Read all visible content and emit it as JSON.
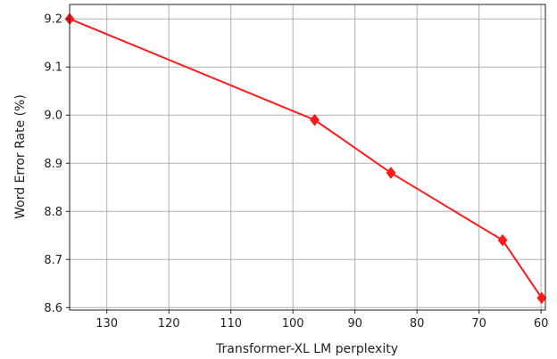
{
  "chart_data": {
    "type": "line",
    "xlabel": "Transformer-XL LM perplexity",
    "ylabel": "Word Error Rate (%)",
    "x_inverted": true,
    "xlim": [
      136,
      59.3
    ],
    "ylim": [
      8.595,
      9.23
    ],
    "x_ticks": [
      130,
      120,
      110,
      100,
      90,
      80,
      70,
      60
    ],
    "y_ticks": [
      8.6,
      8.7,
      8.8,
      8.9,
      9.0,
      9.1,
      9.2
    ],
    "x_tick_labels": [
      "130",
      "120",
      "110",
      "100",
      "90",
      "80",
      "70",
      "60"
    ],
    "y_tick_labels": [
      "8.6",
      "8.7",
      "8.8",
      "8.9",
      "9.0",
      "9.1",
      "9.2"
    ],
    "grid": true,
    "series": [
      {
        "color": "#ff1a1a",
        "marker": "diamond",
        "x": [
          136,
          96.5,
          84.2,
          66.2,
          59.9
        ],
        "y": [
          9.2,
          8.99,
          8.88,
          8.74,
          8.62
        ]
      }
    ]
  }
}
